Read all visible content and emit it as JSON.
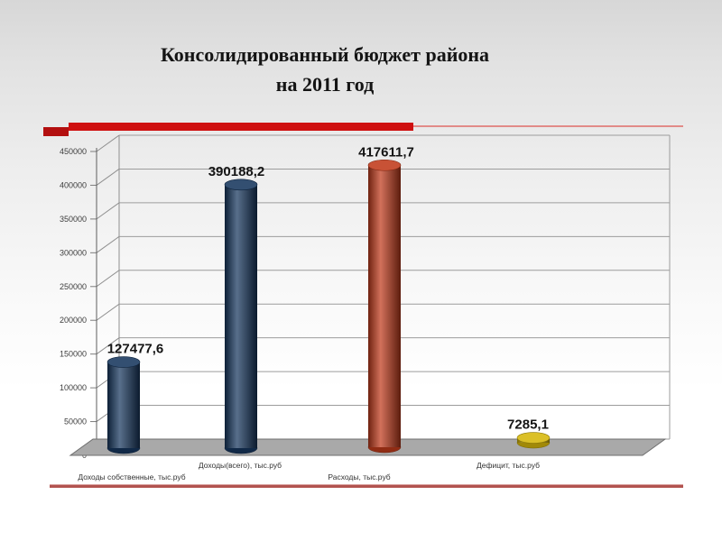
{
  "slide": {
    "title_line1": "Консолидированный бюджет района",
    "title_line2": "на 2011 год"
  },
  "colors": {
    "accent_red_bar": "#cf1010",
    "accent_red_thin_line": "#e28b88",
    "bottom_line_red": "#b2534f",
    "bar_blue": "#17375e",
    "bar_orange": "#c03a1b",
    "bar_yellow": "#d6b70b",
    "floor_gray": "#a9a9a9",
    "grid_gray": "#8f8f8f"
  },
  "chart_data": {
    "type": "bar",
    "subtype": "3d-cylinder",
    "title": "Консолидированный бюджет района на 2011 год",
    "categories": [
      "Доходы собственные, тыс.руб",
      "Доходы(всего), тыс.руб",
      "Расходы, тыс.руб",
      "Дефицит, тыс.руб"
    ],
    "values": [
      127477.6,
      390188.2,
      417611.7,
      7285.1
    ],
    "value_labels": [
      "127477,6",
      "390188,2",
      "417611,7",
      "7285,1"
    ],
    "bar_colors": [
      "#17375e",
      "#17375e",
      "#c03a1b",
      "#d6b70b"
    ],
    "xlabel": "",
    "ylabel": "",
    "ylim": [
      0,
      450000
    ],
    "ytick_step": 50000,
    "ytick_labels": [
      "0",
      "50000",
      "100000",
      "150000",
      "200000",
      "250000",
      "300000",
      "350000",
      "400000",
      "450000"
    ],
    "grid": true,
    "legend": false
  }
}
